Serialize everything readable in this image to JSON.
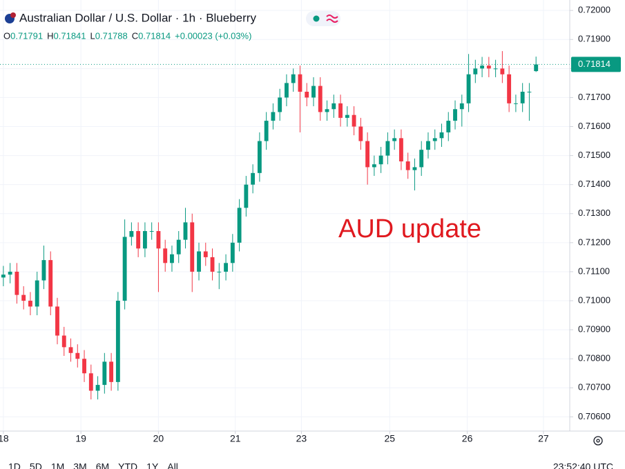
{
  "chart_data": {
    "type": "candlestick",
    "title": "Australian Dollar / U.S. Dollar · 1h · Blueberry",
    "ohlc_legend": [
      {
        "label": "O",
        "value": 0.71791
      },
      {
        "label": "H",
        "value": 0.71841
      },
      {
        "label": "L",
        "value": 0.71788
      },
      {
        "label": "C",
        "value": 0.71814
      }
    ],
    "change": "+0.00023 (+0.03%)",
    "annotation": "AUD update",
    "up_color": "#089981",
    "down_color": "#f23645",
    "x": [
      0,
      1,
      2,
      3,
      4,
      5,
      6,
      7,
      8,
      9,
      10,
      11,
      12,
      13,
      14,
      15,
      16,
      17,
      18,
      19,
      20,
      21,
      22,
      23,
      24,
      25,
      26,
      27,
      28,
      29,
      30,
      31,
      32,
      33,
      34,
      35,
      36,
      37,
      38,
      39,
      40,
      41,
      42,
      43,
      44,
      45,
      46,
      47,
      48,
      49,
      50,
      51,
      52,
      53,
      54,
      55,
      56,
      57,
      58,
      59,
      60,
      61,
      62,
      63,
      64,
      65,
      66,
      67,
      68,
      69,
      70,
      71,
      72,
      73,
      74,
      75,
      76,
      77,
      78,
      79
    ],
    "open": [
      0.7108,
      0.7109,
      0.711,
      0.7102,
      0.71,
      0.7098,
      0.7107,
      0.7114,
      0.7098,
      0.7088,
      0.7084,
      0.7082,
      0.708,
      0.7075,
      0.7069,
      0.7071,
      0.7079,
      0.7072,
      0.71,
      0.7122,
      0.7124,
      0.7118,
      0.7124,
      0.7124,
      0.7118,
      0.7113,
      0.7116,
      0.7121,
      0.7127,
      0.711,
      0.7117,
      0.7115,
      0.711,
      0.711,
      0.7113,
      0.712,
      0.7132,
      0.714,
      0.7144,
      0.7155,
      0.7162,
      0.7165,
      0.717,
      0.7175,
      0.7178,
      0.7172,
      0.717,
      0.7174,
      0.7165,
      0.7166,
      0.7168,
      0.7163,
      0.7164,
      0.716,
      0.7155,
      0.7146,
      0.7147,
      0.715,
      0.7155,
      0.7156,
      0.7148,
      0.7145,
      0.7146,
      0.7152,
      0.7155,
      0.7156,
      0.7158,
      0.7162,
      0.7166,
      0.7168,
      0.7178,
      0.718,
      0.7181,
      0.718,
      0.718,
      0.7178,
      0.7168,
      0.7168,
      0.7172,
      0.71791
    ],
    "high": [
      0.7112,
      0.7113,
      0.7113,
      0.7105,
      0.7103,
      0.711,
      0.7119,
      0.7117,
      0.7101,
      0.7091,
      0.7087,
      0.7085,
      0.7083,
      0.7078,
      0.7074,
      0.7082,
      0.7082,
      0.7103,
      0.7128,
      0.7127,
      0.7127,
      0.7127,
      0.7127,
      0.7127,
      0.7121,
      0.7119,
      0.7124,
      0.7132,
      0.713,
      0.712,
      0.712,
      0.7118,
      0.7113,
      0.7116,
      0.7123,
      0.7135,
      0.7143,
      0.7147,
      0.7158,
      0.7165,
      0.7168,
      0.7173,
      0.7178,
      0.718,
      0.7181,
      0.7175,
      0.7177,
      0.7177,
      0.7169,
      0.7171,
      0.7171,
      0.7167,
      0.7167,
      0.7163,
      0.7158,
      0.715,
      0.7153,
      0.7158,
      0.7159,
      0.7159,
      0.7151,
      0.7149,
      0.7155,
      0.7158,
      0.7159,
      0.7161,
      0.7165,
      0.7169,
      0.7171,
      0.7185,
      0.7183,
      0.7184,
      0.7184,
      0.7183,
      0.7186,
      0.7181,
      0.7171,
      0.7175,
      0.7175,
      0.71841
    ],
    "low": [
      0.7105,
      0.7106,
      0.7099,
      0.7097,
      0.7095,
      0.7095,
      0.7104,
      0.7095,
      0.7085,
      0.7081,
      0.7079,
      0.7077,
      0.7072,
      0.7066,
      0.7066,
      0.7068,
      0.7069,
      0.7069,
      0.7097,
      0.7119,
      0.7115,
      0.7115,
      0.7121,
      0.7103,
      0.711,
      0.711,
      0.7113,
      0.7118,
      0.7103,
      0.7107,
      0.7112,
      0.7107,
      0.7104,
      0.7107,
      0.711,
      0.7117,
      0.7129,
      0.7137,
      0.7141,
      0.7152,
      0.7159,
      0.7162,
      0.7167,
      0.7172,
      0.7158,
      0.7167,
      0.7167,
      0.7162,
      0.7162,
      0.7163,
      0.716,
      0.716,
      0.7157,
      0.7152,
      0.714,
      0.7143,
      0.7144,
      0.7147,
      0.7152,
      0.7145,
      0.7142,
      0.7138,
      0.7143,
      0.7149,
      0.7152,
      0.7153,
      0.7155,
      0.7159,
      0.716,
      0.7165,
      0.7175,
      0.7177,
      0.7177,
      0.7177,
      0.7175,
      0.7165,
      0.7165,
      0.7165,
      0.7162,
      0.71788
    ],
    "close": [
      0.7109,
      0.711,
      0.7102,
      0.71,
      0.7098,
      0.7107,
      0.7114,
      0.7098,
      0.7088,
      0.7084,
      0.7082,
      0.708,
      0.7075,
      0.7069,
      0.7071,
      0.7079,
      0.7072,
      0.71,
      0.7122,
      0.7124,
      0.7118,
      0.7124,
      0.7124,
      0.7118,
      0.7113,
      0.7116,
      0.7121,
      0.7127,
      0.711,
      0.7117,
      0.7115,
      0.711,
      0.711,
      0.7113,
      0.712,
      0.7132,
      0.714,
      0.7144,
      0.7155,
      0.7162,
      0.7165,
      0.717,
      0.7175,
      0.7178,
      0.7172,
      0.717,
      0.7174,
      0.7165,
      0.7166,
      0.7168,
      0.7163,
      0.7164,
      0.716,
      0.7155,
      0.7146,
      0.7147,
      0.715,
      0.7155,
      0.7156,
      0.7148,
      0.7145,
      0.7146,
      0.7152,
      0.7155,
      0.7156,
      0.7158,
      0.7162,
      0.7166,
      0.7168,
      0.7178,
      0.718,
      0.7181,
      0.718,
      0.718,
      0.7178,
      0.7168,
      0.7168,
      0.7172,
      0.7172,
      0.71814
    ],
    "last_price": {
      "value": 0.71814,
      "label": "0.71814"
    },
    "xlim": [
      -0.5,
      84
    ],
    "xticks": [
      {
        "value": 0.0,
        "label": "18"
      },
      {
        "value": 11.5,
        "label": "19"
      },
      {
        "value": 23.0,
        "label": "20"
      },
      {
        "value": 34.4,
        "label": "21"
      },
      {
        "value": 44.2,
        "label": "23"
      },
      {
        "value": 57.3,
        "label": "25"
      },
      {
        "value": 68.8,
        "label": "26"
      },
      {
        "value": 80.1,
        "label": "27"
      }
    ],
    "ylim": [
      0.70551,
      0.72036
    ],
    "yticks": [
      {
        "value": 0.72,
        "label": "0.72000"
      },
      {
        "value": 0.719,
        "label": "0.71900"
      },
      {
        "value": 0.718,
        "label": "0.71800"
      },
      {
        "value": 0.717,
        "label": "0.71700"
      },
      {
        "value": 0.716,
        "label": "0.71600"
      },
      {
        "value": 0.715,
        "label": "0.71500"
      },
      {
        "value": 0.714,
        "label": "0.71400"
      },
      {
        "value": 0.713,
        "label": "0.71300"
      },
      {
        "value": 0.712,
        "label": "0.71200"
      },
      {
        "value": 0.711,
        "label": "0.71100"
      },
      {
        "value": 0.71,
        "label": "0.71000"
      },
      {
        "value": 0.709,
        "label": "0.70900"
      },
      {
        "value": 0.708,
        "label": "0.70800"
      },
      {
        "value": 0.707,
        "label": "0.70700"
      },
      {
        "value": 0.706,
        "label": "0.70600"
      }
    ],
    "grid": true
  },
  "toolbar": {
    "ranges": [
      "1D",
      "5D",
      "1M",
      "3M",
      "6M",
      "YTD",
      "1Y",
      "All"
    ],
    "clock": "23:52:40 UTC"
  }
}
